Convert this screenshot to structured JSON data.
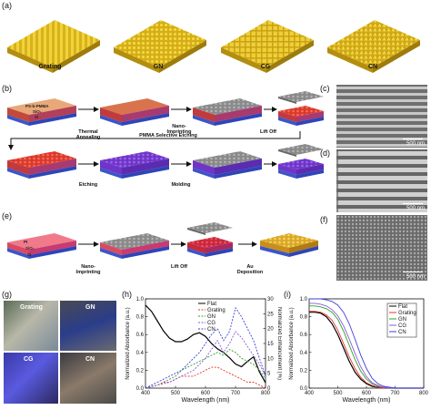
{
  "panels": {
    "a": "(a)",
    "b": "(b)",
    "c": "(c)",
    "d": "(d)",
    "e": "(e)",
    "f": "(f)",
    "g": "(g)",
    "h": "(h)",
    "i": "(i)"
  },
  "structures": [
    "Grating",
    "GN",
    "CG",
    "CN"
  ],
  "process_b": {
    "layer_labels": [
      "PS-b-PMMA",
      "SiO₂",
      "Si"
    ],
    "steps": [
      "Thermal Annealing",
      "Nano-Imprinting",
      "Lift Off",
      "PMMA Selective Etching",
      "Etching",
      "Molding"
    ]
  },
  "process_e": {
    "layer_labels": [
      "PI",
      "SiO₂",
      "Si"
    ],
    "steps": [
      "Nano-Imprinting",
      "Lift Off",
      "Au Deposition"
    ]
  },
  "sem_scale": "500 nm",
  "photo_labels": [
    "Grating",
    "GN",
    "CG",
    "CN"
  ],
  "colors": {
    "Flat": "#000000",
    "Grating": "#e8322d",
    "GN": "#2ca02c",
    "CG": "#8d5ad6",
    "CN": "#3f3fd6"
  },
  "chart_data": [
    {
      "type": "line",
      "panel": "h",
      "xlabel": "Wavelength (nm)",
      "ylabel": "Normalized Absorbance (a.u.)",
      "y2label": "Normalized Enhancement (%)",
      "xlim": [
        400,
        800
      ],
      "ylim": [
        0,
        1.0
      ],
      "y2lim": [
        0,
        30
      ],
      "xticks": [
        400,
        500,
        600,
        700,
        800
      ],
      "yticks": [
        0.0,
        0.2,
        0.4,
        0.6,
        0.8,
        1.0
      ],
      "y2ticks": [
        0,
        5,
        10,
        15,
        20,
        25,
        30
      ],
      "legend_position": "top-right",
      "x": [
        400,
        420,
        440,
        460,
        480,
        500,
        520,
        540,
        560,
        580,
        600,
        620,
        640,
        660,
        680,
        700,
        720,
        740,
        760,
        780,
        800
      ],
      "series": [
        {
          "name": "Flat",
          "axis": "left",
          "values": [
            0.93,
            0.86,
            0.75,
            0.64,
            0.56,
            0.52,
            0.52,
            0.55,
            0.6,
            0.62,
            0.58,
            0.5,
            0.44,
            0.4,
            0.34,
            0.27,
            0.24,
            0.3,
            0.35,
            0.18,
            0.06
          ]
        },
        {
          "name": "Grating",
          "axis": "right",
          "values": [
            0,
            0.5,
            1,
            1.5,
            2,
            3,
            4,
            4,
            4,
            5,
            6,
            7,
            7,
            6,
            5,
            4,
            3,
            2,
            2,
            1,
            0
          ]
        },
        {
          "name": "GN",
          "axis": "right",
          "values": [
            0,
            0.5,
            1,
            2,
            3,
            4,
            6,
            7,
            8,
            9,
            10,
            11,
            12,
            11,
            13,
            12,
            10,
            9,
            8,
            6,
            3
          ]
        },
        {
          "name": "CG",
          "axis": "right",
          "values": [
            0,
            0.5,
            1,
            2,
            2,
            3,
            4,
            5,
            6,
            8,
            10,
            13,
            16,
            12,
            15,
            19,
            17,
            14,
            11,
            8,
            4
          ]
        },
        {
          "name": "CN",
          "axis": "right",
          "values": [
            0,
            1,
            2,
            3,
            4,
            5,
            6,
            8,
            10,
            12,
            15,
            18,
            20,
            16,
            19,
            27,
            24,
            20,
            16,
            10,
            4
          ]
        }
      ]
    },
    {
      "type": "line",
      "panel": "i",
      "xlabel": "Wavelength (nm)",
      "ylabel": "Normalized Absorbance (a.u.)",
      "xlim": [
        400,
        800
      ],
      "ylim": [
        0,
        1.0
      ],
      "xticks": [
        400,
        500,
        600,
        700,
        800
      ],
      "yticks": [
        0.0,
        0.2,
        0.4,
        0.6,
        0.8,
        1.0
      ],
      "legend_position": "top-right",
      "x": [
        400,
        420,
        440,
        460,
        480,
        500,
        520,
        540,
        560,
        580,
        600,
        620,
        640,
        660,
        680,
        700,
        720,
        740,
        760,
        780,
        800
      ],
      "series": [
        {
          "name": "Flat",
          "values": [
            0.85,
            0.85,
            0.84,
            0.8,
            0.72,
            0.6,
            0.45,
            0.3,
            0.18,
            0.1,
            0.05,
            0.02,
            0.01,
            0,
            0,
            0,
            0,
            0,
            0,
            0,
            0
          ]
        },
        {
          "name": "Grating",
          "values": [
            0.86,
            0.86,
            0.85,
            0.82,
            0.76,
            0.65,
            0.5,
            0.35,
            0.22,
            0.12,
            0.06,
            0.03,
            0.01,
            0,
            0,
            0,
            0,
            0,
            0,
            0,
            0
          ]
        },
        {
          "name": "GN",
          "values": [
            0.92,
            0.92,
            0.91,
            0.89,
            0.85,
            0.77,
            0.64,
            0.48,
            0.32,
            0.19,
            0.1,
            0.05,
            0.02,
            0.01,
            0,
            0,
            0,
            0,
            0,
            0,
            0
          ]
        },
        {
          "name": "CG",
          "values": [
            0.95,
            0.95,
            0.94,
            0.92,
            0.88,
            0.81,
            0.7,
            0.55,
            0.39,
            0.24,
            0.13,
            0.06,
            0.03,
            0.01,
            0,
            0,
            0,
            0,
            0,
            0,
            0
          ]
        },
        {
          "name": "CN",
          "values": [
            1.0,
            1.0,
            1.0,
            0.99,
            0.97,
            0.93,
            0.85,
            0.72,
            0.55,
            0.37,
            0.22,
            0.11,
            0.05,
            0.02,
            0.01,
            0,
            0,
            0,
            0,
            0,
            0
          ]
        }
      ]
    }
  ]
}
